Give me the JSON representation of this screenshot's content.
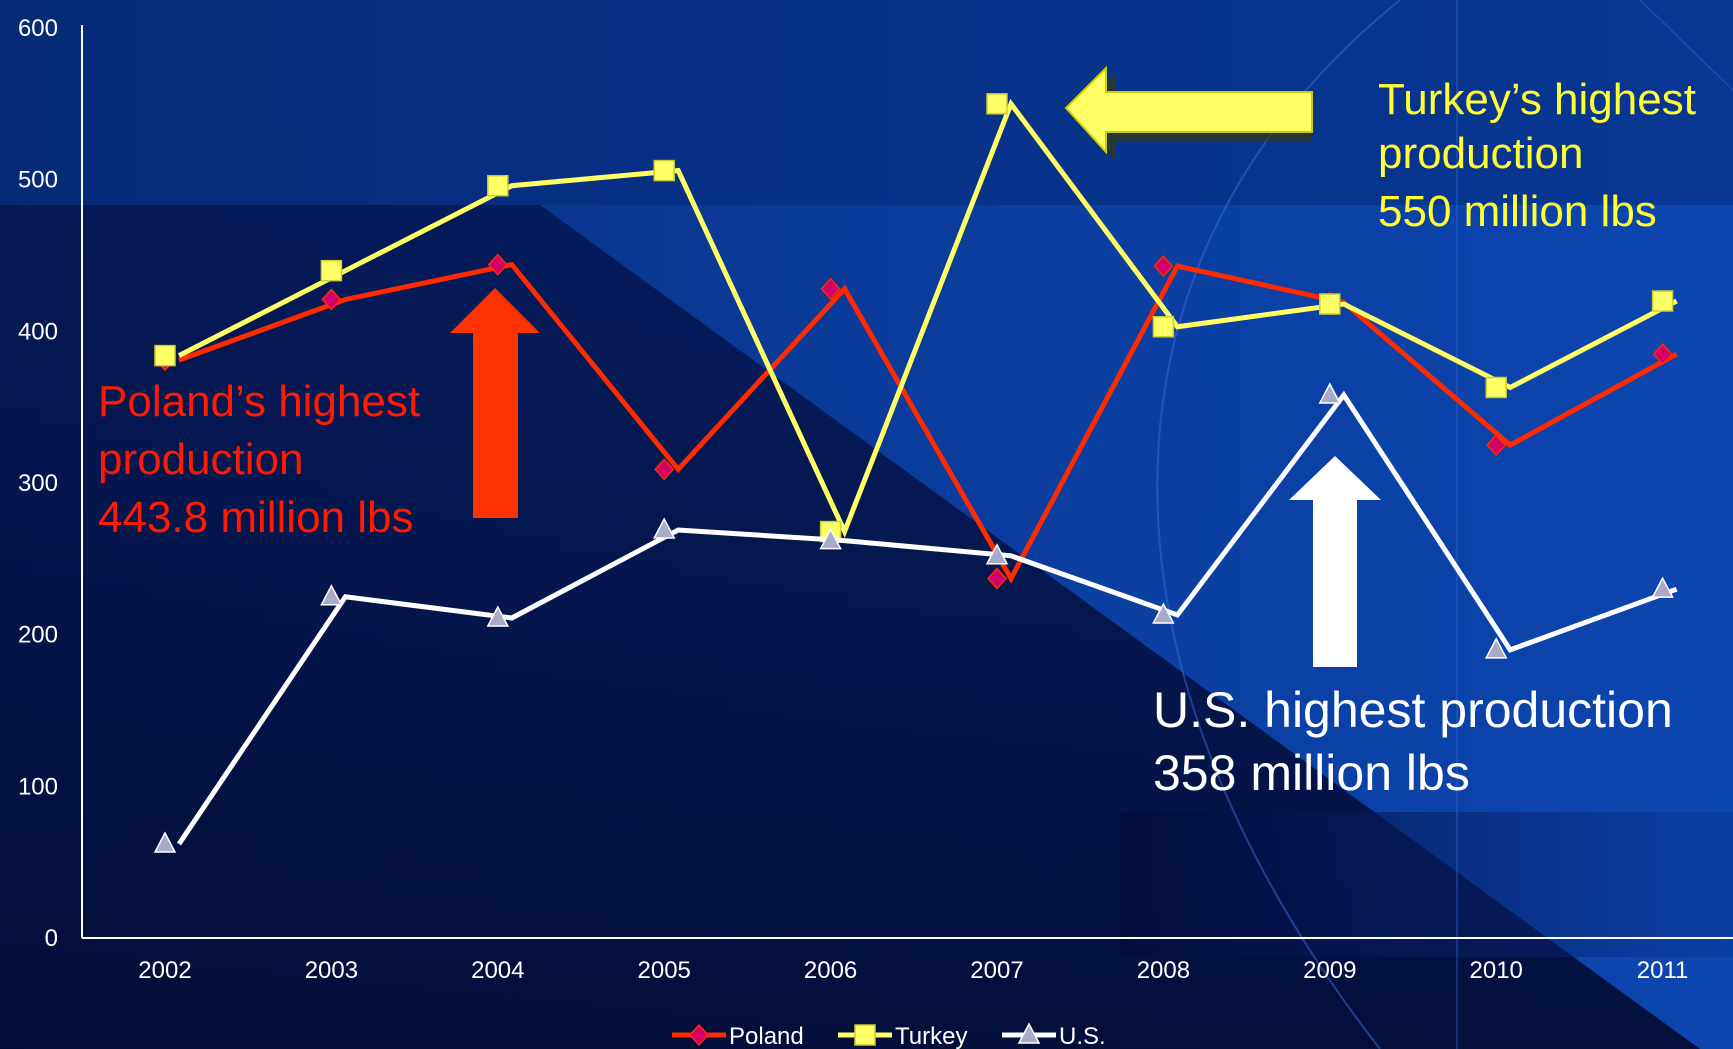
{
  "colors": {
    "poland_line": "#ff2a00",
    "poland_marker": "#d4006a",
    "turkey": "#ffff66",
    "us_line": "#ffffff",
    "us_marker": "#a9a9c9",
    "poland_text": "#ff1a00",
    "turkey_text": "#ffff33",
    "us_text": "#ffffff"
  },
  "annotations": {
    "poland": [
      "Poland’s highest",
      "production",
      "443.8 million lbs"
    ],
    "turkey": [
      "Turkey’s highest",
      "production",
      "550 million lbs"
    ],
    "us": [
      "U.S. highest production",
      "358 million lbs"
    ]
  },
  "chart_data": {
    "type": "line",
    "title": "",
    "xlabel": "",
    "ylabel": "",
    "categories": [
      "2002",
      "2003",
      "2004",
      "2005",
      "2006",
      "2007",
      "2008",
      "2009",
      "2010",
      "2011"
    ],
    "ylim": [
      0,
      600
    ],
    "yticks": [
      0,
      100,
      200,
      300,
      400,
      500,
      600
    ],
    "grid": false,
    "legend": "bottom",
    "series": [
      {
        "name": "Poland",
        "marker": "diamond",
        "values": [
          381,
          421,
          444,
          309,
          428,
          237,
          443,
          419,
          325,
          385
        ]
      },
      {
        "name": "Turkey",
        "marker": "square",
        "values": [
          384,
          440,
          496,
          506,
          268,
          550,
          403,
          418,
          363,
          420
        ]
      },
      {
        "name": "U.S.",
        "marker": "triangle",
        "values": [
          62,
          225,
          211,
          269,
          262,
          252,
          213,
          358,
          190,
          230
        ]
      }
    ]
  }
}
